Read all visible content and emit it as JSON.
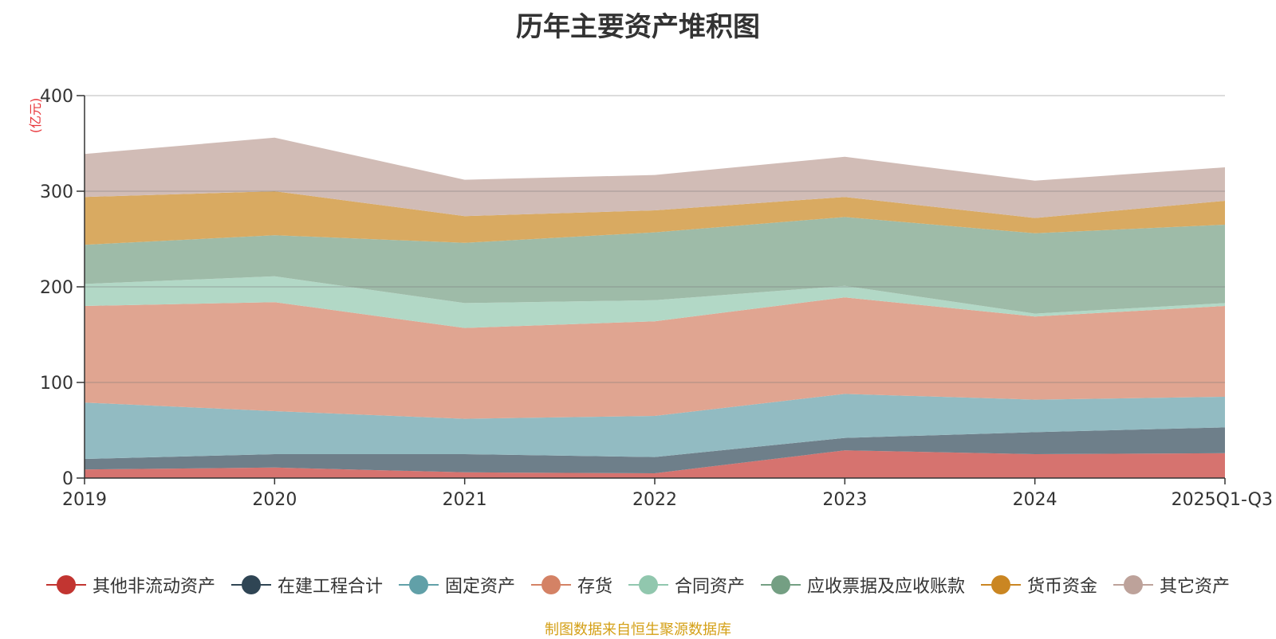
{
  "chart_data": {
    "type": "area",
    "stacked": true,
    "title": "历年主要资产堆积图",
    "unit": "(亿元)",
    "source": "制图数据来自恒生聚源数据库",
    "categories": [
      "2019",
      "2020",
      "2021",
      "2022",
      "2023",
      "2024",
      "2025Q1-Q3"
    ],
    "ylim": [
      0,
      400
    ],
    "yticks": [
      "0",
      "100",
      "200",
      "300",
      "400"
    ],
    "grid": true,
    "legend_position": "bottom",
    "series": [
      {
        "name": "其他非流动资产",
        "color": "#d6736f",
        "legend_color": "#c23531",
        "values": [
          9,
          11,
          6,
          5,
          29,
          25,
          26
        ]
      },
      {
        "name": "在建工程合计",
        "color": "#6e7f8a",
        "legend_color": "#2f4554",
        "values": [
          11,
          14,
          19,
          17,
          13,
          23,
          27
        ]
      },
      {
        "name": "固定资产",
        "color": "#92bbc2",
        "legend_color": "#61a0a8",
        "values": [
          59,
          45,
          37,
          43,
          46,
          34,
          32
        ]
      },
      {
        "name": "存货",
        "color": "#e0a591",
        "legend_color": "#d48265",
        "values": [
          101,
          114,
          95,
          99,
          101,
          87,
          95
        ]
      },
      {
        "name": "合同资产",
        "color": "#b2d8c6",
        "legend_color": "#91c7ae",
        "values": [
          23,
          27,
          26,
          22,
          12,
          3,
          3
        ]
      },
      {
        "name": "应收票据及应收账款",
        "color": "#9ebba8",
        "legend_color": "#749f83",
        "values": [
          41,
          43,
          63,
          71,
          72,
          84,
          82
        ]
      },
      {
        "name": "货币资金",
        "color": "#d9aa61",
        "legend_color": "#ca8622",
        "values": [
          50,
          46,
          28,
          23,
          21,
          16,
          25
        ]
      },
      {
        "name": "其它资产",
        "color": "#d1bcb6",
        "legend_color": "#bda29a",
        "values": [
          45,
          56,
          38,
          37,
          42,
          39,
          35
        ]
      }
    ]
  }
}
